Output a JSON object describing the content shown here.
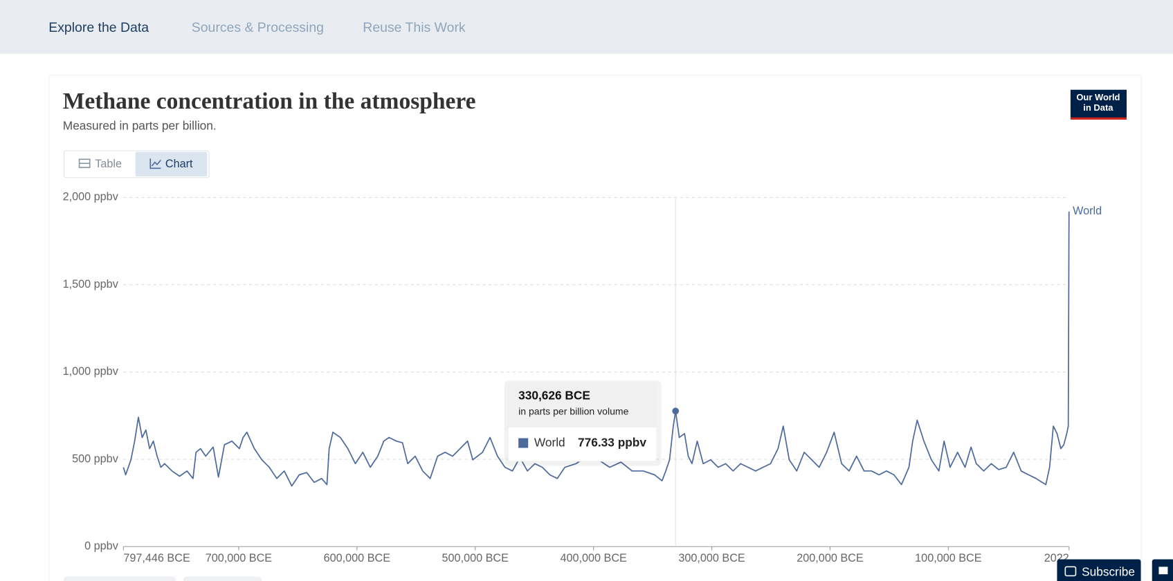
{
  "nav": {
    "tabs": [
      "Explore the Data",
      "Sources & Processing",
      "Reuse This Work"
    ]
  },
  "logo": {
    "lines": [
      "Our World",
      "in Data"
    ]
  },
  "toggle": [
    "Table",
    "Chart"
  ],
  "subscribe": "Subscribe",
  "chart_data": {
    "type": "line",
    "title": "Methane concentration in the atmosphere",
    "subtitle": "Measured in parts per billion.",
    "x": [
      -797446,
      -795550,
      -791120,
      -787960,
      -784800,
      -781630,
      -778470,
      -775310,
      -772150,
      -768980,
      -765820,
      -762660,
      -756330,
      -750010,
      -743680,
      -738620,
      -736090,
      -732300,
      -727870,
      -721550,
      -717120,
      -712060,
      -705740,
      -699410,
      -696250,
      -693080,
      -686760,
      -680430,
      -674110,
      -667780,
      -661460,
      -655130,
      -648810,
      -642480,
      -636160,
      -629830,
      -625400,
      -623510,
      -620350,
      -614020,
      -607700,
      -601370,
      -595050,
      -588720,
      -582400,
      -577340,
      -572910,
      -566590,
      -561530,
      -557100,
      -550770,
      -544450,
      -538120,
      -531800,
      -525470,
      -519150,
      -512820,
      -506500,
      -502070,
      -493850,
      -487520,
      -481200,
      -474870,
      -468550,
      -462220,
      -455900,
      -449570,
      -443250,
      -436920,
      -430600,
      -424270,
      -414780,
      -405290,
      -395810,
      -386320,
      -376830,
      -367350,
      -357860,
      -348370,
      -342050,
      -338890,
      -335720,
      -332560,
      -330626,
      -327500,
      -323070,
      -319910,
      -316750,
      -312320,
      -307260,
      -300940,
      -294610,
      -288290,
      -281960,
      -275640,
      -269310,
      -262990,
      -256660,
      -250340,
      -244010,
      -239580,
      -234520,
      -228200,
      -221870,
      -215550,
      -209220,
      -202900,
      -196570,
      -190250,
      -183920,
      -177600,
      -171270,
      -164950,
      -158620,
      -152300,
      -145970,
      -139650,
      -133320,
      -130160,
      -126370,
      -120670,
      -114350,
      -108020,
      -103600,
      -98530,
      -92210,
      -85880,
      -80820,
      -76390,
      -70070,
      -63740,
      -57420,
      -51090,
      -44770,
      -38450,
      -32120,
      -25800,
      -20740,
      -17570,
      -14410,
      -11250,
      -8090,
      -4930,
      -2400,
      100,
      1400,
      2022
    ],
    "series": [
      {
        "name": "World",
        "color": "#4c6a9c",
        "values": [
          454,
          411,
          497,
          604,
          741,
          625,
          668,
          561,
          604,
          518,
          454,
          475,
          433,
          403,
          433,
          390,
          540,
          561,
          518,
          570,
          398,
          583,
          604,
          561,
          625,
          655,
          561,
          497,
          454,
          390,
          433,
          347,
          411,
          424,
          368,
          390,
          355,
          561,
          655,
          625,
          561,
          475,
          540,
          454,
          518,
          604,
          625,
          604,
          595,
          475,
          518,
          433,
          390,
          518,
          540,
          518,
          561,
          604,
          497,
          540,
          625,
          518,
          454,
          433,
          510,
          433,
          475,
          454,
          411,
          390,
          454,
          475,
          518,
          497,
          454,
          484,
          433,
          433,
          411,
          377,
          433,
          497,
          690,
          776.33,
          625,
          647,
          518,
          475,
          604,
          475,
          497,
          454,
          475,
          433,
          475,
          454,
          433,
          454,
          475,
          561,
          690,
          497,
          433,
          540,
          497,
          454,
          540,
          655,
          475,
          433,
          518,
          433,
          433,
          411,
          433,
          411,
          355,
          454,
          604,
          724,
          604,
          497,
          433,
          604,
          454,
          540,
          454,
          570,
          475,
          433,
          475,
          441,
          454,
          540,
          433,
          411,
          390,
          368,
          355,
          454,
          690,
          647,
          561,
          583,
          647,
          690,
          1919
        ]
      }
    ],
    "xlim": [
      -797446,
      2022
    ],
    "xticks": [
      {
        "value": -797446,
        "label": "797,446 BCE"
      },
      {
        "value": -700000,
        "label": "700,000 BCE"
      },
      {
        "value": -600000,
        "label": "600,000 BCE"
      },
      {
        "value": -500000,
        "label": "500,000 BCE"
      },
      {
        "value": -400000,
        "label": "400,000 BCE"
      },
      {
        "value": -300000,
        "label": "300,000 BCE"
      },
      {
        "value": -200000,
        "label": "200,000 BCE"
      },
      {
        "value": -100000,
        "label": "100,000 BCE"
      },
      2022
    ],
    "ylim": [
      0,
      2000
    ],
    "yticks": [
      {
        "value": 0,
        "label": "0 ppbv"
      },
      {
        "value": 500,
        "label": "500 ppbv"
      },
      {
        "value": 1000,
        "label": "1,000 ppbv"
      },
      {
        "value": 1500,
        "label": "1,500 ppbv"
      },
      {
        "value": 2000,
        "label": "2,000 ppbv"
      }
    ],
    "grid": true,
    "tooltip": {
      "x": {
        "value": -330626,
        "label": "330,626 BCE"
      },
      "subtitle": "in parts per billion volume",
      "series_name": "World",
      "value": 776.33,
      "value_label": "776.33 ppbv"
    }
  }
}
